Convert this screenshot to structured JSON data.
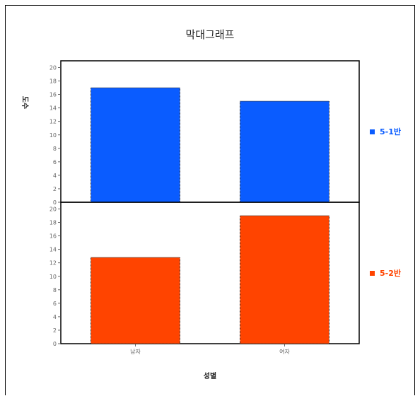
{
  "chart_data": {
    "type": "bar",
    "title": "막대그래프",
    "xlabel": "성별",
    "ylabel": "도수",
    "categories": [
      "남자",
      "여자"
    ],
    "ylim": [
      0,
      21
    ],
    "yticks": [
      0,
      2,
      4,
      6,
      8,
      10,
      12,
      14,
      16,
      18,
      20
    ],
    "grid": false,
    "legend_position": "right",
    "panels": [
      {
        "name": "5-1반",
        "values": [
          17,
          15
        ],
        "color": "#0a5cff"
      },
      {
        "name": "5-2반",
        "values": [
          12.8,
          19
        ],
        "color": "#ff4400"
      }
    ]
  }
}
